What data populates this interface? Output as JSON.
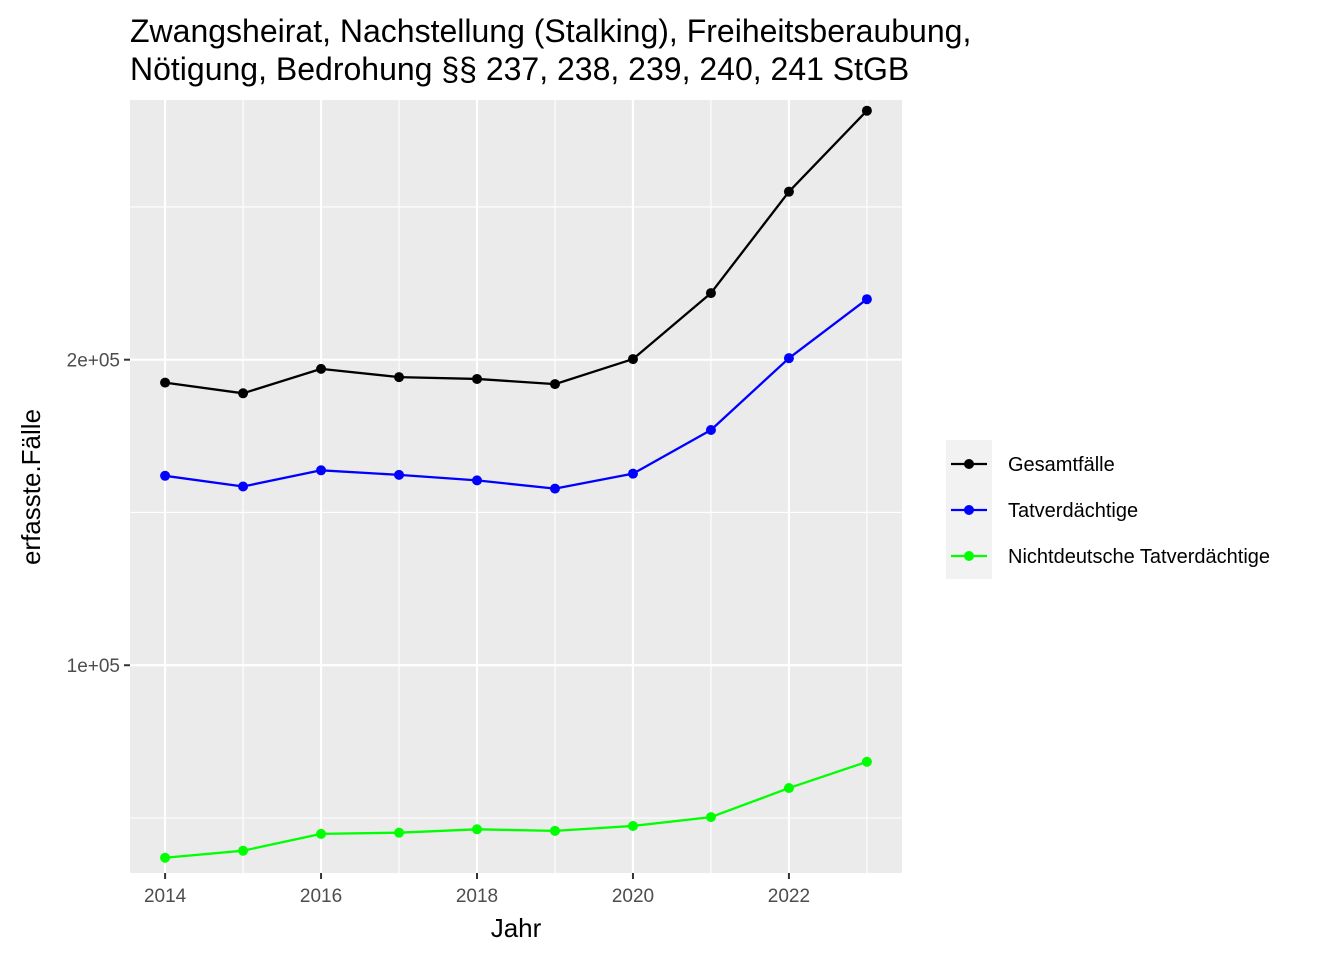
{
  "chart_data": {
    "type": "line",
    "title_lines": [
      "Zwangsheirat, Nachstellung (Stalking), Freiheitsberaubung,",
      "Nötigung, Bedrohung §§ 237, 238, 239, 240, 241 StGB"
    ],
    "xlabel": "Jahr",
    "ylabel": "erfasste.Fälle",
    "x": [
      2014,
      2015,
      2016,
      2017,
      2018,
      2019,
      2020,
      2021,
      2022,
      2023
    ],
    "xlim": [
      2013.55,
      2023.45
    ],
    "ylim": [
      32000,
      285000
    ],
    "x_ticks": [
      2014,
      2016,
      2018,
      2020,
      2022
    ],
    "x_tick_labels": [
      "2014",
      "2016",
      "2018",
      "2020",
      "2022"
    ],
    "y_ticks": [
      100000,
      200000
    ],
    "y_tick_labels": [
      "1e+05",
      "2e+05"
    ],
    "y_minor_grid": [
      50000,
      150000,
      250000
    ],
    "grid": true,
    "legend_position": "right",
    "series": [
      {
        "name": "Gesamtfälle",
        "color": "#000000",
        "values": [
          192500,
          189000,
          197000,
          194300,
          193700,
          192000,
          200200,
          221800,
          255000,
          281500
        ]
      },
      {
        "name": "Tatverdächtige",
        "color": "#0000ff",
        "values": [
          162000,
          158500,
          163800,
          162300,
          160500,
          157800,
          162700,
          177000,
          200500,
          219800
        ]
      },
      {
        "name": "Nichtdeutsche Tatverdächtige",
        "color": "#00ff00",
        "values": [
          37000,
          39300,
          44800,
          45200,
          46300,
          45800,
          47400,
          50300,
          59800,
          68400
        ]
      }
    ]
  }
}
